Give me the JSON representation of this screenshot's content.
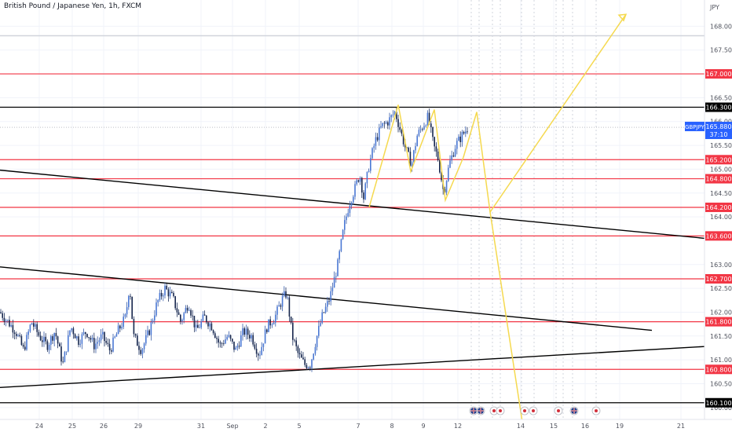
{
  "chart_data": {
    "type": "candlestick",
    "title": "British Pound / Japanese Yen, 1h, FXCM",
    "currency_label": "JPY",
    "symbol": "GBPJPY",
    "last_price": "165.880",
    "countdown": "37:10",
    "ylim": [
      159.75,
      168.55
    ],
    "y_ticks": [
      {
        "v": 168.0,
        "label": "168.000"
      },
      {
        "v": 167.5,
        "label": "167.500"
      },
      {
        "v": 166.5,
        "label": "166.500"
      },
      {
        "v": 166.0,
        "label": "166.000"
      },
      {
        "v": 165.5,
        "label": "165.500"
      },
      {
        "v": 165.0,
        "label": "165.000"
      },
      {
        "v": 164.5,
        "label": "164.500"
      },
      {
        "v": 164.0,
        "label": "164.000"
      },
      {
        "v": 163.0,
        "label": "163.000"
      },
      {
        "v": 162.5,
        "label": "162.500"
      },
      {
        "v": 162.0,
        "label": "162.000"
      },
      {
        "v": 161.5,
        "label": "161.500"
      },
      {
        "v": 161.0,
        "label": "161.000"
      },
      {
        "v": 160.5,
        "label": "160.500"
      },
      {
        "v": 160.0,
        "label": "160.000"
      }
    ],
    "x_ticks": [
      "24",
      "25",
      "26",
      "29",
      "31",
      "Sep",
      "2",
      "5",
      "7",
      "8",
      "9",
      "12",
      "14",
      "15",
      "16",
      "19",
      "21"
    ],
    "level_lines": [
      {
        "v": 167.0,
        "label": "167.000",
        "color": "#f23645"
      },
      {
        "v": 166.3,
        "label": "166.300",
        "color": "#000000"
      },
      {
        "v": 165.2,
        "label": "165.200",
        "color": "#f23645"
      },
      {
        "v": 164.8,
        "label": "164.800",
        "color": "#f23645"
      },
      {
        "v": 164.2,
        "label": "164.200",
        "color": "#f23645"
      },
      {
        "v": 163.6,
        "label": "163.600",
        "color": "#f23645"
      },
      {
        "v": 162.7,
        "label": "162.700",
        "color": "#f23645"
      },
      {
        "v": 161.8,
        "label": "161.800",
        "color": "#f23645"
      },
      {
        "v": 160.8,
        "label": "160.800",
        "color": "#f23645"
      },
      {
        "v": 160.1,
        "label": "160.100",
        "color": "#000000"
      }
    ],
    "white_line": 167.8,
    "price_path": [
      [
        0,
        162.0
      ],
      [
        10,
        161.8
      ],
      [
        20,
        161.6
      ],
      [
        30,
        161.2
      ],
      [
        40,
        161.8
      ],
      [
        50,
        161.5
      ],
      [
        60,
        161.3
      ],
      [
        70,
        161.6
      ],
      [
        80,
        160.9
      ],
      [
        90,
        161.7
      ],
      [
        100,
        161.4
      ],
      [
        110,
        161.6
      ],
      [
        120,
        161.3
      ],
      [
        130,
        161.5
      ],
      [
        140,
        161.2
      ],
      [
        150,
        161.6
      ],
      [
        160,
        161.9
      ],
      [
        165,
        162.6
      ],
      [
        170,
        161.5
      ],
      [
        180,
        161.2
      ],
      [
        190,
        161.6
      ],
      [
        200,
        162.2
      ],
      [
        210,
        162.5
      ],
      [
        220,
        162.3
      ],
      [
        230,
        161.8
      ],
      [
        240,
        162.2
      ],
      [
        250,
        161.6
      ],
      [
        260,
        161.9
      ],
      [
        270,
        161.7
      ],
      [
        280,
        161.3
      ],
      [
        290,
        161.5
      ],
      [
        300,
        161.2
      ],
      [
        310,
        161.6
      ],
      [
        320,
        161.5
      ],
      [
        330,
        161.1
      ],
      [
        340,
        161.7
      ],
      [
        350,
        161.9
      ],
      [
        360,
        162.3
      ],
      [
        365,
        162.4
      ],
      [
        372,
        161.5
      ],
      [
        380,
        161.1
      ],
      [
        388,
        160.9
      ],
      [
        395,
        160.9
      ],
      [
        402,
        161.4
      ],
      [
        410,
        161.9
      ],
      [
        420,
        162.3
      ],
      [
        430,
        163.0
      ],
      [
        438,
        163.8
      ],
      [
        445,
        164.3
      ],
      [
        452,
        164.6
      ],
      [
        458,
        164.9
      ],
      [
        463,
        164.4
      ],
      [
        470,
        165.1
      ],
      [
        478,
        165.6
      ],
      [
        486,
        165.9
      ],
      [
        494,
        166.0
      ],
      [
        503,
        166.2
      ],
      [
        510,
        165.8
      ],
      [
        517,
        165.4
      ],
      [
        524,
        165.1
      ],
      [
        531,
        165.7
      ],
      [
        538,
        165.9
      ],
      [
        545,
        166.1
      ],
      [
        552,
        165.5
      ],
      [
        558,
        165.2
      ],
      [
        565,
        164.5
      ],
      [
        572,
        165.1
      ],
      [
        580,
        165.5
      ],
      [
        588,
        165.7
      ],
      [
        596,
        165.88
      ]
    ],
    "trend_lines": [
      {
        "x1": 0,
        "v1": 164.98,
        "x2": 897,
        "v2": 163.55,
        "color": "#000000"
      },
      {
        "x1": 0,
        "v1": 162.95,
        "x2": 830,
        "v2": 161.62,
        "color": "#000000"
      },
      {
        "x1": 0,
        "v1": 160.42,
        "x2": 897,
        "v2": 161.28,
        "color": "#000000"
      }
    ],
    "projection_lines": [
      {
        "points": [
          [
            470,
            164.2
          ],
          [
            507,
            166.35
          ],
          [
            523,
            164.95
          ],
          [
            553,
            166.25
          ],
          [
            567,
            164.35
          ],
          [
            590,
            165.25
          ]
        ],
        "color": "#f5d94f"
      },
      {
        "points": [
          [
            590,
            165.25
          ],
          [
            607,
            166.2
          ],
          [
            624,
            164.1
          ],
          [
            665,
            159.7
          ]
        ],
        "color": "#f5d94f"
      },
      {
        "points": [
          [
            624,
            164.1
          ],
          [
            797,
            168.25
          ]
        ],
        "color": "#f5d94f"
      }
    ],
    "event_markers": [
      {
        "x": 603,
        "flag": "uk"
      },
      {
        "x": 612,
        "flag": "uk"
      },
      {
        "x": 629,
        "flag": "jp"
      },
      {
        "x": 637,
        "flag": "jp"
      },
      {
        "x": 668,
        "flag": "jp"
      },
      {
        "x": 679,
        "flag": "jp"
      },
      {
        "x": 711,
        "flag": "jp"
      },
      {
        "x": 731,
        "flag": "uk"
      },
      {
        "x": 759,
        "flag": "jp"
      }
    ]
  }
}
